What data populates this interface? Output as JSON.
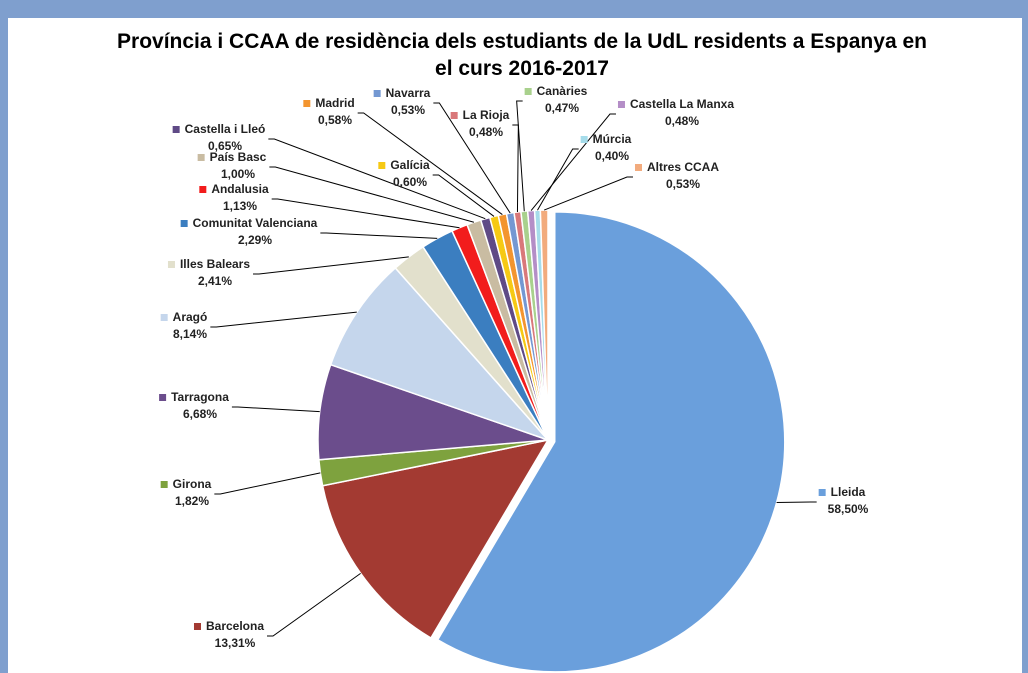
{
  "chart_data": {
    "type": "pie",
    "title": "Província i CCAA de residència dels estudiants de la UdL residents a Espanya en el curs 2016-2017",
    "categories": [
      "Lleida",
      "Barcelona",
      "Girona",
      "Tarragona",
      "Aragó",
      "Illes Balears",
      "Comunitat Valenciana",
      "Andalusia",
      "País Basc",
      "Castella i Lleó",
      "Galícia",
      "Madrid",
      "Navarra",
      "La Rioja",
      "Canàries",
      "Castella La Manxa",
      "Múrcia",
      "Altres CCAA"
    ],
    "values": [
      58.5,
      13.31,
      1.82,
      6.68,
      8.14,
      2.41,
      2.29,
      1.13,
      1.0,
      0.65,
      0.6,
      0.58,
      0.53,
      0.48,
      0.47,
      0.48,
      0.4,
      0.53
    ],
    "value_labels": [
      "58,50%",
      "13,31%",
      "1,82%",
      "6,68%",
      "8,14%",
      "2,41%",
      "2,29%",
      "1,13%",
      "1,00%",
      "0,65%",
      "0,60%",
      "0,58%",
      "0,53%",
      "0,48%",
      "0,47%",
      "0,48%",
      "0,40%",
      "0,53%"
    ],
    "colors": [
      "#6a9fdc",
      "#a33a32",
      "#7ea23e",
      "#6b4d8c",
      "#c5d6ec",
      "#e2e0cc",
      "#3b7ec0",
      "#f21c1c",
      "#c9bca2",
      "#5f4a86",
      "#f6c914",
      "#f3952f",
      "#7498d2",
      "#d9787a",
      "#a9d18d",
      "#b48ec7",
      "#a6dcea",
      "#f2ab7d"
    ]
  }
}
